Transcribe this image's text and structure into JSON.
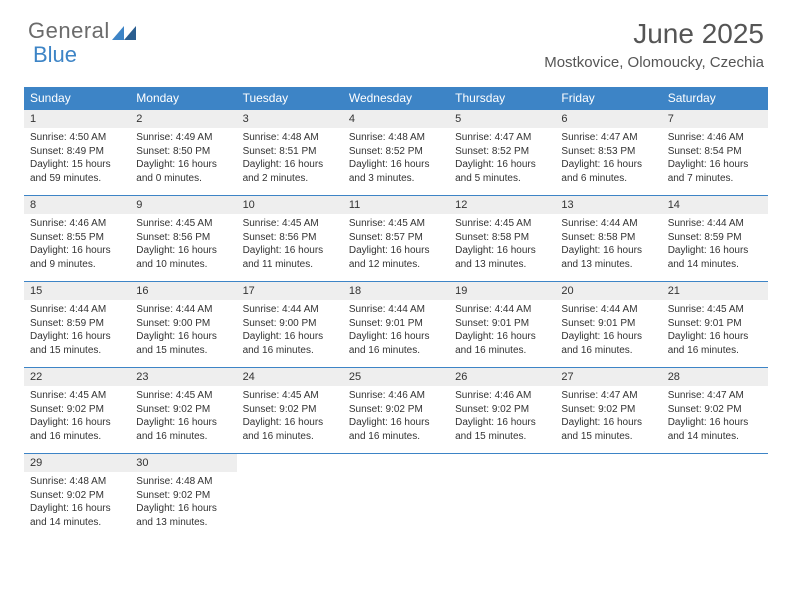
{
  "logo": {
    "part1": "General",
    "part2": "Blue"
  },
  "title": "June 2025",
  "location": "Mostkovice, Olomoucky, Czechia",
  "colors": {
    "brand_blue": "#3d84c6",
    "header_text": "#555555",
    "cell_bg": "#eeeeee",
    "body_text": "#333333",
    "white": "#ffffff"
  },
  "fonts": {
    "title_size": 28,
    "location_size": 15,
    "dow_size": 12,
    "daynum_size": 11,
    "body_size": 10
  },
  "days_of_week": [
    "Sunday",
    "Monday",
    "Tuesday",
    "Wednesday",
    "Thursday",
    "Friday",
    "Saturday"
  ],
  "weeks": [
    [
      {
        "n": "1",
        "sr": "Sunrise: 4:50 AM",
        "ss": "Sunset: 8:49 PM",
        "d1": "Daylight: 15 hours",
        "d2": "and 59 minutes."
      },
      {
        "n": "2",
        "sr": "Sunrise: 4:49 AM",
        "ss": "Sunset: 8:50 PM",
        "d1": "Daylight: 16 hours",
        "d2": "and 0 minutes."
      },
      {
        "n": "3",
        "sr": "Sunrise: 4:48 AM",
        "ss": "Sunset: 8:51 PM",
        "d1": "Daylight: 16 hours",
        "d2": "and 2 minutes."
      },
      {
        "n": "4",
        "sr": "Sunrise: 4:48 AM",
        "ss": "Sunset: 8:52 PM",
        "d1": "Daylight: 16 hours",
        "d2": "and 3 minutes."
      },
      {
        "n": "5",
        "sr": "Sunrise: 4:47 AM",
        "ss": "Sunset: 8:52 PM",
        "d1": "Daylight: 16 hours",
        "d2": "and 5 minutes."
      },
      {
        "n": "6",
        "sr": "Sunrise: 4:47 AM",
        "ss": "Sunset: 8:53 PM",
        "d1": "Daylight: 16 hours",
        "d2": "and 6 minutes."
      },
      {
        "n": "7",
        "sr": "Sunrise: 4:46 AM",
        "ss": "Sunset: 8:54 PM",
        "d1": "Daylight: 16 hours",
        "d2": "and 7 minutes."
      }
    ],
    [
      {
        "n": "8",
        "sr": "Sunrise: 4:46 AM",
        "ss": "Sunset: 8:55 PM",
        "d1": "Daylight: 16 hours",
        "d2": "and 9 minutes."
      },
      {
        "n": "9",
        "sr": "Sunrise: 4:45 AM",
        "ss": "Sunset: 8:56 PM",
        "d1": "Daylight: 16 hours",
        "d2": "and 10 minutes."
      },
      {
        "n": "10",
        "sr": "Sunrise: 4:45 AM",
        "ss": "Sunset: 8:56 PM",
        "d1": "Daylight: 16 hours",
        "d2": "and 11 minutes."
      },
      {
        "n": "11",
        "sr": "Sunrise: 4:45 AM",
        "ss": "Sunset: 8:57 PM",
        "d1": "Daylight: 16 hours",
        "d2": "and 12 minutes."
      },
      {
        "n": "12",
        "sr": "Sunrise: 4:45 AM",
        "ss": "Sunset: 8:58 PM",
        "d1": "Daylight: 16 hours",
        "d2": "and 13 minutes."
      },
      {
        "n": "13",
        "sr": "Sunrise: 4:44 AM",
        "ss": "Sunset: 8:58 PM",
        "d1": "Daylight: 16 hours",
        "d2": "and 13 minutes."
      },
      {
        "n": "14",
        "sr": "Sunrise: 4:44 AM",
        "ss": "Sunset: 8:59 PM",
        "d1": "Daylight: 16 hours",
        "d2": "and 14 minutes."
      }
    ],
    [
      {
        "n": "15",
        "sr": "Sunrise: 4:44 AM",
        "ss": "Sunset: 8:59 PM",
        "d1": "Daylight: 16 hours",
        "d2": "and 15 minutes."
      },
      {
        "n": "16",
        "sr": "Sunrise: 4:44 AM",
        "ss": "Sunset: 9:00 PM",
        "d1": "Daylight: 16 hours",
        "d2": "and 15 minutes."
      },
      {
        "n": "17",
        "sr": "Sunrise: 4:44 AM",
        "ss": "Sunset: 9:00 PM",
        "d1": "Daylight: 16 hours",
        "d2": "and 16 minutes."
      },
      {
        "n": "18",
        "sr": "Sunrise: 4:44 AM",
        "ss": "Sunset: 9:01 PM",
        "d1": "Daylight: 16 hours",
        "d2": "and 16 minutes."
      },
      {
        "n": "19",
        "sr": "Sunrise: 4:44 AM",
        "ss": "Sunset: 9:01 PM",
        "d1": "Daylight: 16 hours",
        "d2": "and 16 minutes."
      },
      {
        "n": "20",
        "sr": "Sunrise: 4:44 AM",
        "ss": "Sunset: 9:01 PM",
        "d1": "Daylight: 16 hours",
        "d2": "and 16 minutes."
      },
      {
        "n": "21",
        "sr": "Sunrise: 4:45 AM",
        "ss": "Sunset: 9:01 PM",
        "d1": "Daylight: 16 hours",
        "d2": "and 16 minutes."
      }
    ],
    [
      {
        "n": "22",
        "sr": "Sunrise: 4:45 AM",
        "ss": "Sunset: 9:02 PM",
        "d1": "Daylight: 16 hours",
        "d2": "and 16 minutes."
      },
      {
        "n": "23",
        "sr": "Sunrise: 4:45 AM",
        "ss": "Sunset: 9:02 PM",
        "d1": "Daylight: 16 hours",
        "d2": "and 16 minutes."
      },
      {
        "n": "24",
        "sr": "Sunrise: 4:45 AM",
        "ss": "Sunset: 9:02 PM",
        "d1": "Daylight: 16 hours",
        "d2": "and 16 minutes."
      },
      {
        "n": "25",
        "sr": "Sunrise: 4:46 AM",
        "ss": "Sunset: 9:02 PM",
        "d1": "Daylight: 16 hours",
        "d2": "and 16 minutes."
      },
      {
        "n": "26",
        "sr": "Sunrise: 4:46 AM",
        "ss": "Sunset: 9:02 PM",
        "d1": "Daylight: 16 hours",
        "d2": "and 15 minutes."
      },
      {
        "n": "27",
        "sr": "Sunrise: 4:47 AM",
        "ss": "Sunset: 9:02 PM",
        "d1": "Daylight: 16 hours",
        "d2": "and 15 minutes."
      },
      {
        "n": "28",
        "sr": "Sunrise: 4:47 AM",
        "ss": "Sunset: 9:02 PM",
        "d1": "Daylight: 16 hours",
        "d2": "and 14 minutes."
      }
    ],
    [
      {
        "n": "29",
        "sr": "Sunrise: 4:48 AM",
        "ss": "Sunset: 9:02 PM",
        "d1": "Daylight: 16 hours",
        "d2": "and 14 minutes."
      },
      {
        "n": "30",
        "sr": "Sunrise: 4:48 AM",
        "ss": "Sunset: 9:02 PM",
        "d1": "Daylight: 16 hours",
        "d2": "and 13 minutes."
      },
      null,
      null,
      null,
      null,
      null
    ]
  ]
}
